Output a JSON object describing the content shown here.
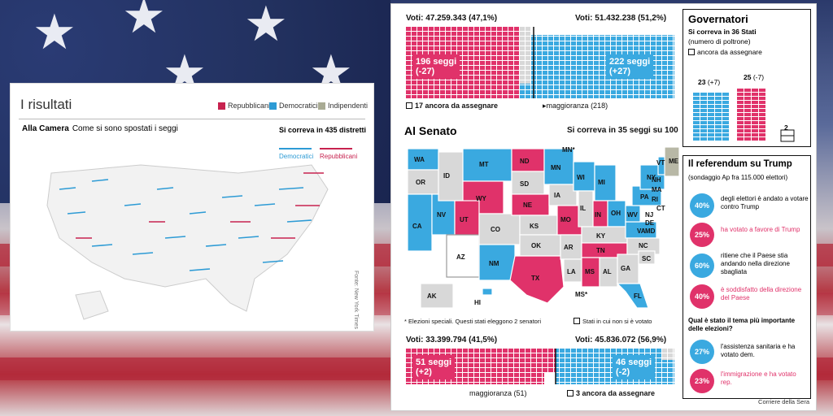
{
  "colors": {
    "rep": "#e0326a",
    "dem": "#3aa9e0",
    "ind": "#b8b8a6",
    "gray": "#d8d8d8"
  },
  "left": {
    "title": "I risultati",
    "legend": {
      "rep": "Repubblicani",
      "dem": "Democratici",
      "ind": "Indipendenti"
    },
    "camera_title": "Alla Camera",
    "camera_sub": "Come si sono spostati i seggi",
    "corr": "Si correva in 435 distretti",
    "arrow_dem": "Democratici",
    "arrow_rep": "Repubblicani",
    "fonte": "Fonte: New York Times"
  },
  "house": {
    "rep_votes": "Voti: 47.259.343 (47,1%)",
    "dem_votes": "Voti: 51.432.238 (51,2%)",
    "rep_seats": "196 seggi",
    "rep_change": "(-27)",
    "dem_seats": "222 seggi",
    "dem_change": "(+27)",
    "pending": "17 ancora da assegnare",
    "majority": "maggioranza (218)"
  },
  "senate": {
    "title": "Al Senato",
    "corr": "Si correva in 35 seggi su 100",
    "note_special": "* Elezioni speciali. Questi stati eleggono 2 senatori",
    "note_novote": "Stati in cui non si è votato",
    "rep_votes": "Voti: 33.399.794 (41,5%)",
    "dem_votes": "Voti: 45.836.072 (56,9%)",
    "rep_seats": "51 seggi",
    "rep_change": "(+2)",
    "dem_seats": "46 seggi",
    "dem_change": "(-2)",
    "majority": "maggioranza (51)",
    "pending": "3 ancora da assegnare",
    "states": {
      "WA": "WA",
      "OR": "OR",
      "CA": "CA",
      "NV": "NV",
      "ID": "ID",
      "MT": "MT",
      "WY": "WY",
      "UT": "UT",
      "AZ": "AZ",
      "CO": "CO",
      "NM": "NM",
      "ND": "ND",
      "SD": "SD",
      "NE": "NE",
      "KS": "KS",
      "OK": "OK",
      "TX": "TX",
      "MN": "MN",
      "IA": "IA",
      "MO": "MO",
      "AR": "AR",
      "LA": "LA",
      "WI": "WI",
      "IL": "IL",
      "MI": "MI",
      "IN": "IN",
      "OH": "OH",
      "KY": "KY",
      "TN": "TN",
      "MS": "MS",
      "AL": "AL",
      "GA": "GA",
      "FL": "FL",
      "SC": "SC",
      "NC": "NC",
      "VA": "VA",
      "WV": "WV",
      "PA": "PA",
      "NY": "NY",
      "VT": "VT",
      "NH": "NH",
      "ME": "ME",
      "MA": "MA",
      "RI": "RI",
      "CT": "CT",
      "NJ": "NJ",
      "DE": "DE",
      "MD": "MD",
      "AK": "AK",
      "HI": "HI",
      "MNs": "MN*",
      "MSs": "MS*"
    }
  },
  "governors": {
    "title": "Governatori",
    "sub1": "Si correva in 36 Stati",
    "sub2": "(numero di poltrone)",
    "pending": "ancora da assegnare",
    "dem": "23",
    "dem_change": "(+7)",
    "rep": "25",
    "rep_change": "(-7)",
    "pend_n": "2"
  },
  "referendum": {
    "title": "Il referendum su Trump",
    "sub": "(sondaggio Ap fra 115.000 elettori)",
    "items": [
      {
        "pct": "40%",
        "text": "degli elettori è andato a votare contro Trump",
        "party": "dem"
      },
      {
        "pct": "25%",
        "text": "ha votato a favore di Trump",
        "party": "rep"
      },
      {
        "pct": "60%",
        "text": "ritiene che il Paese stia andando nella direzione sbagliata",
        "party": "dem"
      },
      {
        "pct": "40%",
        "text": "è soddisfatto della direzione del Paese",
        "party": "rep"
      }
    ],
    "question": "Qual è stato il tema più importante delle elezioni?",
    "q_items": [
      {
        "pct": "27%",
        "text": "l'assistenza sanitaria e ha votato dem.",
        "party": "dem"
      },
      {
        "pct": "23%",
        "text": "l'immigrazione e ha votato rep.",
        "party": "rep"
      }
    ]
  },
  "credit": "Corriere della Sera"
}
